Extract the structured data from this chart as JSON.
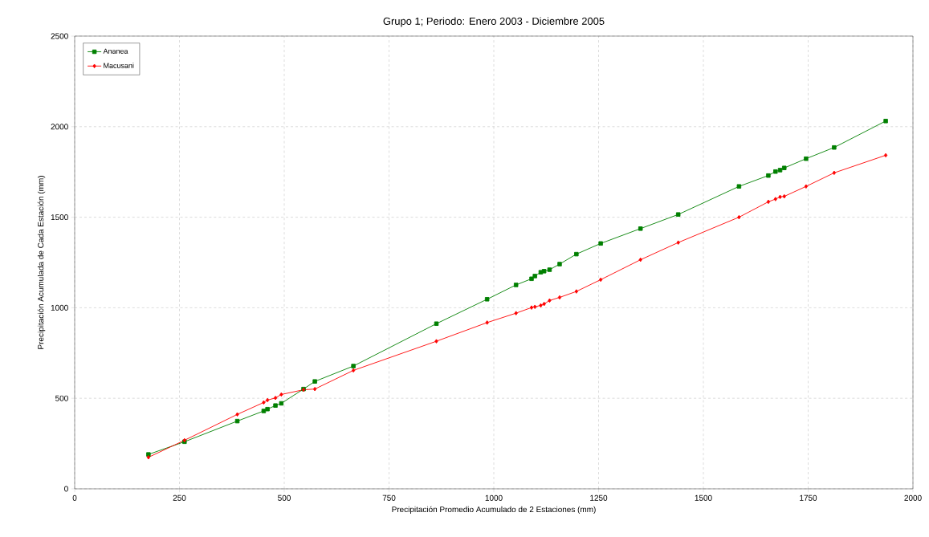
{
  "chart_data": {
    "type": "line",
    "title": "Grupo 1; Periodo: Enero 2003 - Diciembre 2005",
    "xlabel": "Precipitación Promedio  Acumulado de 2 Estaciones (mm)",
    "ylabel": "Precipitación Acumulada de Cada Estación (mm)",
    "x": [
      176,
      262,
      388,
      451,
      460,
      479,
      493,
      546,
      573,
      665,
      863,
      984,
      1053,
      1090,
      1098,
      1112,
      1120,
      1133,
      1157,
      1197,
      1255,
      1350,
      1440,
      1585,
      1655,
      1672,
      1683,
      1693,
      1745,
      1812,
      1935
    ],
    "series": [
      {
        "name": "Ananea",
        "color": "#008000",
        "marker": "square",
        "values": [
          190,
          260,
          374,
          430,
          440,
          460,
          472,
          551,
          593,
          678,
          912,
          1047,
          1126,
          1160,
          1175,
          1196,
          1202,
          1210,
          1241,
          1296,
          1355,
          1437,
          1515,
          1670,
          1730,
          1752,
          1760,
          1772,
          1823,
          1885,
          2031
        ]
      },
      {
        "name": "Macusani",
        "color": "#ff0000",
        "marker": "diamond",
        "values": [
          174,
          268,
          411,
          477,
          490,
          502,
          521,
          547,
          551,
          654,
          815,
          918,
          970,
          1001,
          1005,
          1013,
          1021,
          1040,
          1057,
          1090,
          1155,
          1265,
          1360,
          1500,
          1585,
          1600,
          1612,
          1615,
          1670,
          1745,
          1842
        ]
      }
    ],
    "xlim": [
      0,
      2000
    ],
    "xticks": [
      0,
      250,
      500,
      750,
      1000,
      1250,
      1500,
      1750,
      2000
    ],
    "ylim": [
      0,
      2500
    ],
    "yticks": [
      0,
      500,
      1000,
      1500,
      2000,
      2500
    ],
    "grid": true,
    "legend": "top left",
    "line_style": "solid"
  }
}
